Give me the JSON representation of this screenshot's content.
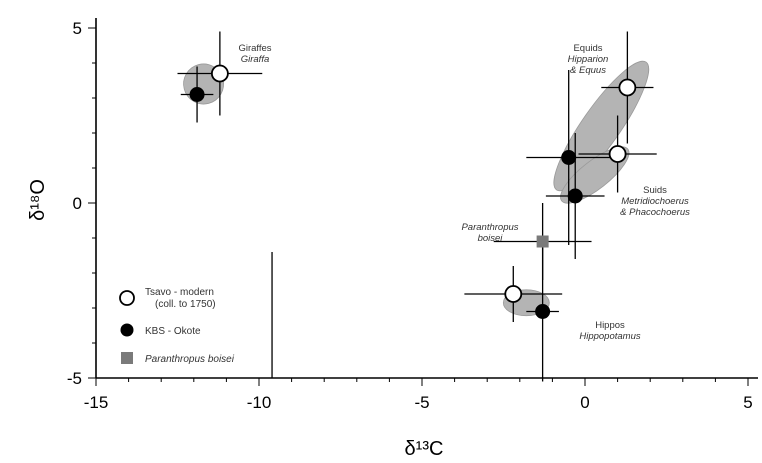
{
  "chart_data": {
    "type": "scatter",
    "xlabel": "δ¹³C",
    "ylabel": "δ¹⁸O",
    "xlim": [
      -15,
      5
    ],
    "ylim": [
      -5,
      5
    ],
    "xticks": [
      -15,
      -10,
      -5,
      0,
      5
    ],
    "yticks": [
      -5,
      0,
      5
    ],
    "xtick_labels": [
      "-15",
      "-10",
      "-5",
      "0",
      "5"
    ],
    "ytick_labels": [
      "-5",
      "0",
      "5"
    ],
    "series": [
      {
        "name": "Tsavo - modern (coll. to 1750)",
        "marker": "open-circle",
        "points": [
          {
            "group": "Giraffe",
            "x": -11.2,
            "y": 3.7
          },
          {
            "group": "Equids",
            "x": 1.3,
            "y": 3.3
          },
          {
            "group": "Suids",
            "x": 1.0,
            "y": 1.4
          },
          {
            "group": "Hippos",
            "x": -2.2,
            "y": -2.6
          }
        ]
      },
      {
        "name": "KBS - Okote",
        "marker": "filled-circle",
        "points": [
          {
            "group": "Giraffe",
            "x": -11.9,
            "y": 3.1
          },
          {
            "group": "Equids",
            "x": -0.5,
            "y": 1.3
          },
          {
            "group": "Suids",
            "x": -0.3,
            "y": 0.2
          },
          {
            "group": "Hippos",
            "x": -1.3,
            "y": -3.1
          }
        ]
      },
      {
        "name": "Paranthropus boisei",
        "marker": "filled-square",
        "points": [
          {
            "group": "Paranthropus boisei",
            "x": -1.3,
            "y": -1.1
          }
        ]
      }
    ],
    "annotations": [
      {
        "lines": [
          "Giraffes",
          "Giraffa"
        ]
      },
      {
        "lines": [
          "Equids",
          "Hipparion",
          "& Equus"
        ]
      },
      {
        "lines": [
          "Suids",
          "Metridiochoerus",
          "& Phacochoerus"
        ]
      },
      {
        "lines": [
          "Paranthropus",
          "boisei"
        ]
      },
      {
        "lines": [
          "Hippos",
          "Hippopotamus"
        ]
      }
    ],
    "legend_position": "bottom-left",
    "grid": false,
    "colors": {
      "axis": "#000000",
      "ellipse": "#b4b4b4",
      "square": "#7a7a7a",
      "text": "#333333"
    }
  }
}
